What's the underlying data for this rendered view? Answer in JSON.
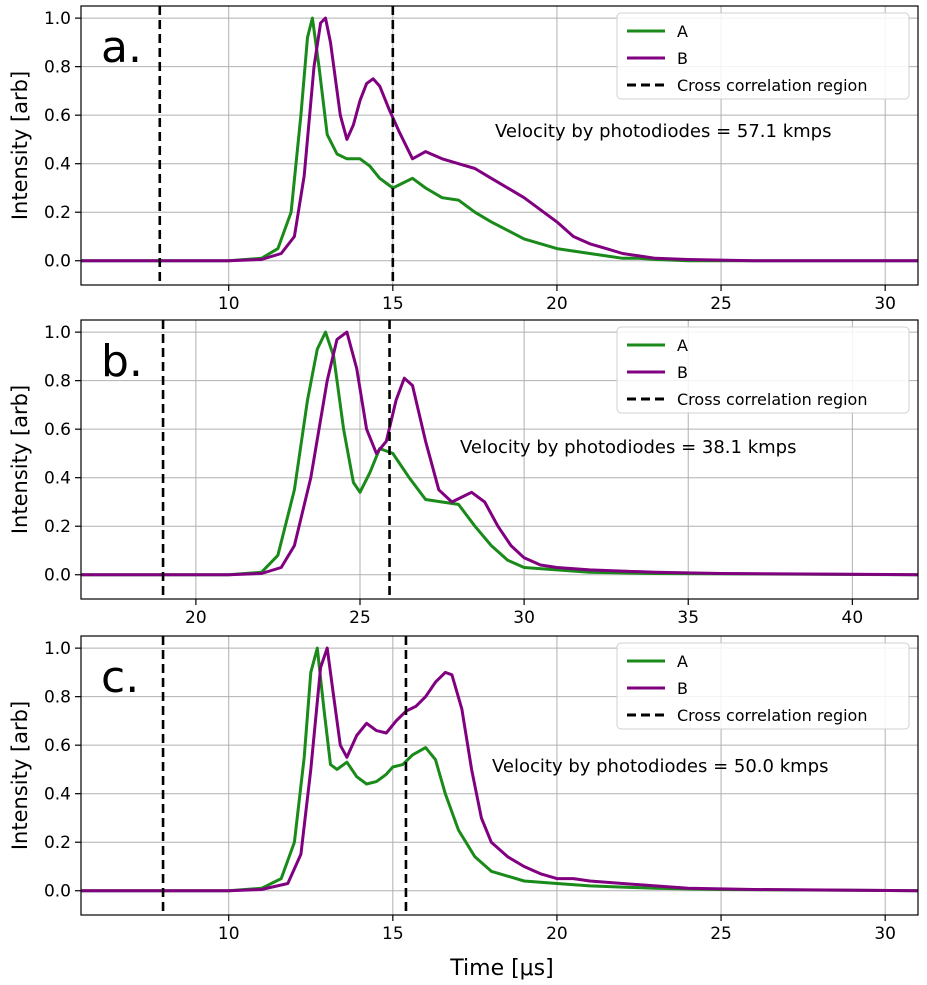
{
  "figure": {
    "xlabel": "Time [μs]"
  },
  "colors": {
    "A": "#1a8a1a",
    "B": "#800080",
    "region": "#000000"
  },
  "chart_data": [
    {
      "type": "line",
      "panel_label": "a.",
      "ylabel": "Intensity [arb]",
      "xlim": [
        5.5,
        31
      ],
      "ylim": [
        -0.1,
        1.05
      ],
      "xticks": [
        10,
        15,
        20,
        25,
        30
      ],
      "yticks": [
        0.0,
        0.2,
        0.4,
        0.6,
        0.8,
        1.0
      ],
      "grid": true,
      "legend": [
        "A",
        "B",
        "Cross correlation region"
      ],
      "legend_position": "top-right",
      "annotation": "Velocity by photodiodes = 57.1 kmps",
      "region": [
        7.9,
        15.0
      ],
      "series": [
        {
          "name": "A",
          "x": [
            5.5,
            8,
            10,
            11,
            11.5,
            11.9,
            12.2,
            12.4,
            12.55,
            12.75,
            13.0,
            13.3,
            13.6,
            14.0,
            14.3,
            14.6,
            15.0,
            15.3,
            15.6,
            16.0,
            16.5,
            17.0,
            17.5,
            18.0,
            19.0,
            20.0,
            21.0,
            21.5,
            22.0,
            22.5,
            23,
            24,
            26,
            31
          ],
          "values": [
            0,
            0,
            0,
            0.01,
            0.05,
            0.2,
            0.6,
            0.92,
            1.0,
            0.8,
            0.52,
            0.44,
            0.42,
            0.42,
            0.39,
            0.34,
            0.3,
            0.32,
            0.34,
            0.3,
            0.26,
            0.25,
            0.2,
            0.16,
            0.09,
            0.05,
            0.03,
            0.02,
            0.01,
            0.01,
            0.005,
            0,
            0,
            0
          ]
        },
        {
          "name": "B",
          "x": [
            5.5,
            8,
            10,
            11,
            11.6,
            12.0,
            12.3,
            12.6,
            12.8,
            12.95,
            13.1,
            13.4,
            13.6,
            13.8,
            14.0,
            14.2,
            14.4,
            14.6,
            14.9,
            15.2,
            15.6,
            16.0,
            16.5,
            17.0,
            17.5,
            18.0,
            19.0,
            19.5,
            20.0,
            20.5,
            21.0,
            21.5,
            22.0,
            22.5,
            23.0,
            24,
            26,
            31
          ],
          "values": [
            0,
            0,
            0,
            0.005,
            0.03,
            0.1,
            0.35,
            0.8,
            0.98,
            1.0,
            0.9,
            0.6,
            0.5,
            0.56,
            0.66,
            0.73,
            0.75,
            0.72,
            0.62,
            0.53,
            0.42,
            0.45,
            0.42,
            0.4,
            0.38,
            0.34,
            0.26,
            0.21,
            0.16,
            0.1,
            0.07,
            0.05,
            0.03,
            0.02,
            0.01,
            0.005,
            0,
            0
          ]
        }
      ]
    },
    {
      "type": "line",
      "panel_label": "b.",
      "ylabel": "Intensity [arb]",
      "xlim": [
        16.5,
        42
      ],
      "ylim": [
        -0.1,
        1.05
      ],
      "xticks": [
        20,
        25,
        30,
        35,
        40
      ],
      "yticks": [
        0.0,
        0.2,
        0.4,
        0.6,
        0.8,
        1.0
      ],
      "grid": true,
      "legend": [
        "A",
        "B",
        "Cross correlation region"
      ],
      "legend_position": "top-right",
      "annotation": "Velocity by photodiodes = 38.1 kmps",
      "region": [
        19.0,
        25.9
      ],
      "series": [
        {
          "name": "A",
          "x": [
            16.5,
            19,
            21,
            22,
            22.5,
            23.0,
            23.4,
            23.7,
            23.95,
            24.2,
            24.5,
            24.8,
            25.0,
            25.3,
            25.6,
            26.0,
            26.5,
            27.0,
            27.5,
            28.0,
            28.5,
            29.0,
            29.5,
            30.0,
            31,
            32,
            34,
            42
          ],
          "values": [
            0,
            0,
            0,
            0.01,
            0.08,
            0.35,
            0.72,
            0.93,
            1.0,
            0.9,
            0.6,
            0.38,
            0.34,
            0.42,
            0.52,
            0.5,
            0.4,
            0.31,
            0.3,
            0.29,
            0.2,
            0.12,
            0.06,
            0.03,
            0.02,
            0.01,
            0.005,
            0
          ]
        },
        {
          "name": "B",
          "x": [
            16.5,
            19,
            21,
            22,
            22.6,
            23.0,
            23.5,
            24.0,
            24.3,
            24.6,
            24.9,
            25.2,
            25.5,
            25.8,
            26.1,
            26.35,
            26.6,
            27.0,
            27.4,
            27.8,
            28.1,
            28.4,
            28.8,
            29.2,
            29.6,
            30.0,
            30.5,
            31.0,
            32.0,
            33.0,
            34,
            36,
            42
          ],
          "values": [
            0,
            0,
            0,
            0.005,
            0.03,
            0.12,
            0.4,
            0.8,
            0.97,
            1.0,
            0.85,
            0.6,
            0.5,
            0.55,
            0.72,
            0.81,
            0.78,
            0.55,
            0.35,
            0.3,
            0.32,
            0.34,
            0.3,
            0.2,
            0.12,
            0.07,
            0.04,
            0.03,
            0.02,
            0.015,
            0.01,
            0.005,
            0
          ]
        }
      ]
    },
    {
      "type": "line",
      "panel_label": "c.",
      "ylabel": "Intensity [arb]",
      "xlabel": "Time [μs]",
      "xlim": [
        5.5,
        31
      ],
      "ylim": [
        -0.1,
        1.05
      ],
      "xticks": [
        10,
        15,
        20,
        25,
        30
      ],
      "yticks": [
        0.0,
        0.2,
        0.4,
        0.6,
        0.8,
        1.0
      ],
      "grid": true,
      "legend": [
        "A",
        "B",
        "Cross correlation region"
      ],
      "legend_position": "top-right",
      "annotation": "Velocity by photodiodes = 50.0 kmps",
      "region": [
        8.0,
        15.4
      ],
      "series": [
        {
          "name": "A",
          "x": [
            5.5,
            8,
            10,
            11,
            11.6,
            12.0,
            12.3,
            12.5,
            12.7,
            12.9,
            13.1,
            13.3,
            13.6,
            13.9,
            14.2,
            14.5,
            14.8,
            15.0,
            15.3,
            15.6,
            16.0,
            16.3,
            16.6,
            17.0,
            17.5,
            18.0,
            19.0,
            20.0,
            21.0,
            23.0,
            25,
            31
          ],
          "values": [
            0,
            0,
            0,
            0.01,
            0.05,
            0.2,
            0.55,
            0.9,
            1.0,
            0.75,
            0.52,
            0.5,
            0.53,
            0.47,
            0.44,
            0.45,
            0.48,
            0.51,
            0.52,
            0.56,
            0.59,
            0.54,
            0.4,
            0.25,
            0.14,
            0.08,
            0.04,
            0.03,
            0.02,
            0.01,
            0.005,
            0
          ]
        },
        {
          "name": "B",
          "x": [
            5.5,
            8,
            10,
            11,
            11.8,
            12.2,
            12.5,
            12.8,
            13.0,
            13.2,
            13.4,
            13.6,
            13.9,
            14.2,
            14.5,
            14.8,
            15.1,
            15.4,
            15.7,
            16.0,
            16.3,
            16.6,
            16.8,
            17.1,
            17.4,
            17.7,
            18.0,
            18.5,
            19.0,
            19.5,
            20.0,
            20.5,
            21.0,
            22.0,
            23.0,
            24.0,
            26,
            31
          ],
          "values": [
            0,
            0,
            0,
            0.005,
            0.03,
            0.15,
            0.5,
            0.92,
            1.0,
            0.8,
            0.6,
            0.55,
            0.64,
            0.69,
            0.66,
            0.65,
            0.7,
            0.74,
            0.76,
            0.8,
            0.86,
            0.9,
            0.89,
            0.75,
            0.5,
            0.3,
            0.2,
            0.14,
            0.1,
            0.07,
            0.05,
            0.05,
            0.04,
            0.03,
            0.02,
            0.01,
            0.005,
            0
          ]
        }
      ]
    }
  ]
}
